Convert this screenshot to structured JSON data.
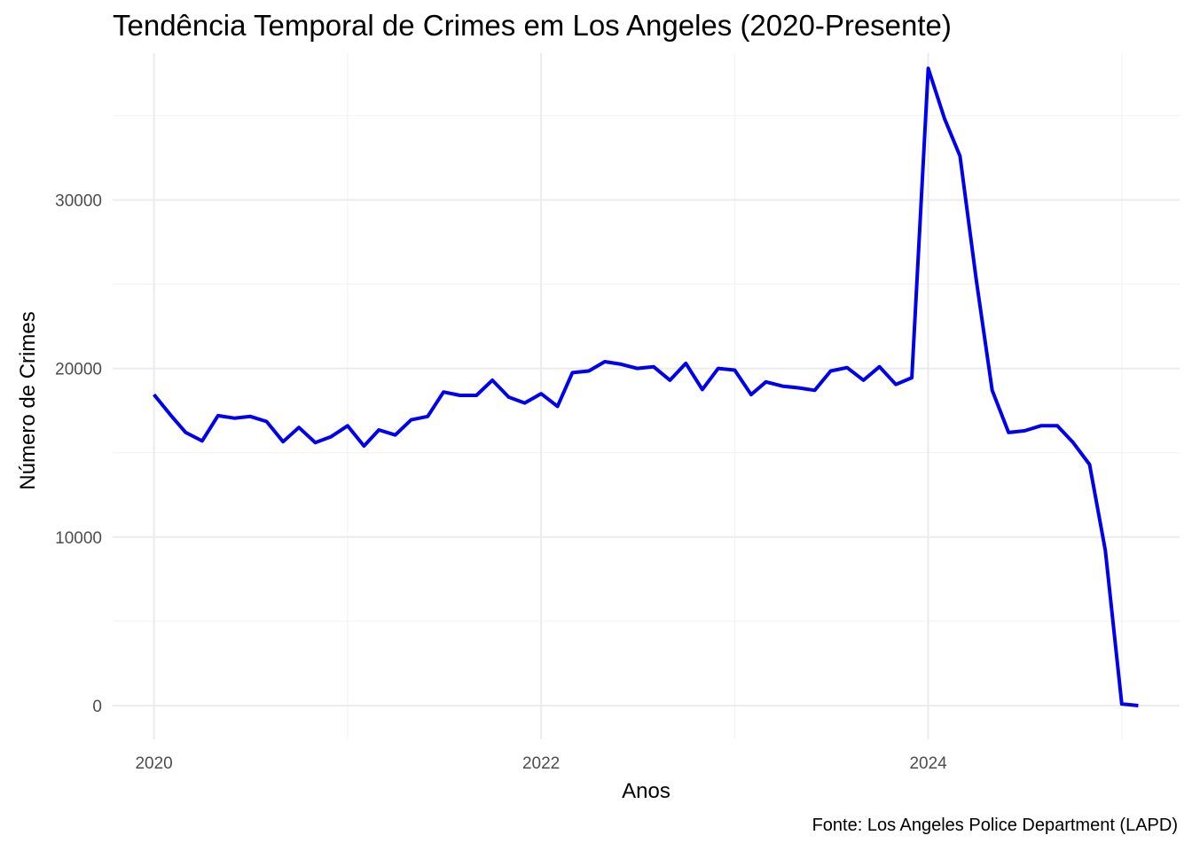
{
  "chart_data": {
    "type": "line",
    "title": "Tendência Temporal de Crimes em Los Angeles (2020-Presente)",
    "xlabel": "Anos",
    "ylabel": "Número de Crimes",
    "caption": "Fonte: Los Angeles Police Department (LAPD)",
    "x_ticks": [
      "2020",
      "2022",
      "2024"
    ],
    "y_ticks": [
      "0",
      "10000",
      "20000",
      "30000"
    ],
    "xlim": [
      "2019-10-15",
      "2025-04-20"
    ],
    "ylim": [
      -2000,
      38700
    ],
    "grid": true,
    "line_color": "#0000EE",
    "series": [
      {
        "x": [
          "2020-01",
          "2020-02",
          "2020-03",
          "2020-04",
          "2020-05",
          "2020-06",
          "2020-07",
          "2020-08",
          "2020-09",
          "2020-10",
          "2020-11",
          "2020-12",
          "2021-01",
          "2021-02",
          "2021-03",
          "2021-04",
          "2021-05",
          "2021-06",
          "2021-07",
          "2021-08",
          "2021-09",
          "2021-10",
          "2021-11",
          "2021-12",
          "2022-01",
          "2022-02",
          "2022-03",
          "2022-04",
          "2022-05",
          "2022-06",
          "2022-07",
          "2022-08",
          "2022-09",
          "2022-10",
          "2022-11",
          "2022-12",
          "2023-01",
          "2023-02",
          "2023-03",
          "2023-04",
          "2023-05",
          "2023-06",
          "2023-07",
          "2023-08",
          "2023-09",
          "2023-10",
          "2023-11",
          "2023-12",
          "2024-01",
          "2024-02",
          "2024-03",
          "2024-04",
          "2024-05",
          "2024-06",
          "2024-07",
          "2024-08",
          "2024-09",
          "2024-10",
          "2024-11",
          "2024-12",
          "2025-01",
          "2025-02"
        ],
        "values": [
          18450,
          17250,
          16200,
          15700,
          17200,
          17050,
          17150,
          16850,
          15650,
          16500,
          15600,
          15950,
          16600,
          15400,
          16350,
          16050,
          16950,
          17150,
          18600,
          18400,
          18400,
          19300,
          18300,
          17950,
          18500,
          17750,
          19750,
          19850,
          20400,
          20250,
          20000,
          20100,
          19300,
          20300,
          18750,
          20000,
          19900,
          18450,
          19200,
          18950,
          18850,
          18700,
          19850,
          20050,
          19300,
          20100,
          19050,
          19450,
          37800,
          34800,
          32600,
          25200,
          18700,
          16200,
          16300,
          16600,
          16600,
          15600,
          14300,
          9200,
          100,
          0
        ]
      }
    ]
  }
}
